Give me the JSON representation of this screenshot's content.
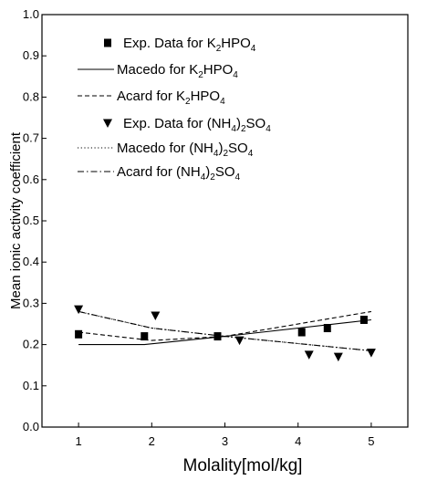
{
  "chart_data": {
    "type": "scatter",
    "xlabel": "Molality[mol/kg]",
    "ylabel": "Mean ionic activity coefficient",
    "xlim": [
      0.5,
      5.5
    ],
    "ylim": [
      0.0,
      1.0
    ],
    "x_ticks": [
      "1",
      "2",
      "3",
      "4",
      "5"
    ],
    "x_tick_values": [
      1,
      2,
      3,
      4,
      5
    ],
    "y_ticks": [
      "0.0",
      "0.1",
      "0.2",
      "0.3",
      "0.4",
      "0.5",
      "0.6",
      "0.7",
      "0.8",
      "0.9",
      "1.0"
    ],
    "y_tick_values": [
      0.0,
      0.1,
      0.2,
      0.3,
      0.4,
      0.5,
      0.6,
      0.7,
      0.8,
      0.9,
      1.0
    ],
    "grid": false,
    "legend_position": "top-left",
    "series": [
      {
        "name": "Exp. Data for K2HPO4",
        "kind": "markers",
        "marker": "square",
        "x": [
          1.0,
          1.9,
          2.9,
          4.05,
          4.4,
          4.9
        ],
        "y": [
          0.225,
          0.22,
          0.22,
          0.23,
          0.24,
          0.26
        ]
      },
      {
        "name": "Macedo for K2HPO4",
        "kind": "line",
        "dash": "solid",
        "x": [
          1.0,
          1.9,
          3.0,
          5.0
        ],
        "y": [
          0.2,
          0.2,
          0.22,
          0.26
        ]
      },
      {
        "name": "Acard for K2HPO4",
        "kind": "line",
        "dash": "dashed",
        "x": [
          1.0,
          2.0,
          3.0,
          5.0
        ],
        "y": [
          0.23,
          0.21,
          0.22,
          0.28
        ]
      },
      {
        "name": "Exp. Data for (NH4)2SO4",
        "kind": "markers",
        "marker": "triangle-down",
        "x": [
          1.0,
          2.05,
          3.2,
          4.15,
          4.55,
          5.0
        ],
        "y": [
          0.285,
          0.27,
          0.21,
          0.175,
          0.17,
          0.18
        ]
      },
      {
        "name": "Macedo for (NH4)2SO4",
        "kind": "line",
        "dash": "dotted",
        "x": [
          1.0,
          2.0,
          3.0,
          5.0
        ],
        "y": [
          0.28,
          0.24,
          0.22,
          0.185
        ]
      },
      {
        "name": "Acard for (NH4)2SO4",
        "kind": "line",
        "dash": "dashdot",
        "x": [
          1.0,
          2.0,
          3.0,
          5.0
        ],
        "y": [
          0.28,
          0.24,
          0.22,
          0.185
        ]
      }
    ],
    "legend": [
      {
        "series": 0,
        "parts": [
          {
            "t": "Exp. Data for K"
          },
          {
            "t": "2",
            "sub": true
          },
          {
            "t": "HPO"
          },
          {
            "t": "4",
            "sub": true
          }
        ]
      },
      {
        "series": 1,
        "parts": [
          {
            "t": "Macedo for K"
          },
          {
            "t": "2",
            "sub": true
          },
          {
            "t": "HPO"
          },
          {
            "t": "4",
            "sub": true
          }
        ]
      },
      {
        "series": 2,
        "parts": [
          {
            "t": "Acard for K"
          },
          {
            "t": "2",
            "sub": true
          },
          {
            "t": "HPO"
          },
          {
            "t": "4",
            "sub": true
          }
        ]
      },
      {
        "series": 3,
        "parts": [
          {
            "t": "Exp. Data for (NH"
          },
          {
            "t": "4",
            "sub": true
          },
          {
            "t": ")"
          },
          {
            "t": "2",
            "sub": true
          },
          {
            "t": "SO"
          },
          {
            "t": "4",
            "sub": true
          }
        ]
      },
      {
        "series": 4,
        "parts": [
          {
            "t": "Macedo for (NH"
          },
          {
            "t": "4",
            "sub": true
          },
          {
            "t": ")"
          },
          {
            "t": "2",
            "sub": true
          },
          {
            "t": "SO"
          },
          {
            "t": "4",
            "sub": true
          }
        ]
      },
      {
        "series": 5,
        "parts": [
          {
            "t": "Acard for (NH"
          },
          {
            "t": "4",
            "sub": true
          },
          {
            "t": ")"
          },
          {
            "t": "2",
            "sub": true
          },
          {
            "t": "SO"
          },
          {
            "t": "4",
            "sub": true
          }
        ]
      }
    ]
  }
}
